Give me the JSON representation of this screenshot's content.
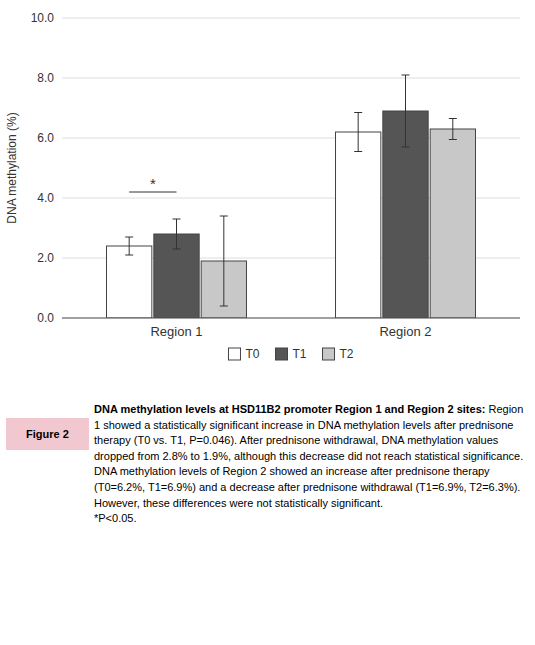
{
  "chart_data": {
    "type": "bar",
    "categories": [
      "Region 1",
      "Region 2"
    ],
    "series": [
      {
        "name": "T0",
        "color": "#ffffff",
        "values": [
          2.4,
          6.2
        ],
        "errors": [
          0.3,
          0.65
        ]
      },
      {
        "name": "T1",
        "color": "#555555",
        "values": [
          2.8,
          6.9
        ],
        "errors": [
          0.5,
          1.2
        ]
      },
      {
        "name": "T2",
        "color": "#c8c8c8",
        "values": [
          1.9,
          6.3
        ],
        "errors": [
          1.5,
          0.35
        ]
      }
    ],
    "y_label": "DNA methylation (%)",
    "ylim": [
      0.0,
      10.0
    ],
    "yticks": [
      {
        "value": 0.0,
        "label": "0.0"
      },
      {
        "value": 2.0,
        "label": "2.0"
      },
      {
        "value": 4.0,
        "label": "4.0"
      },
      {
        "value": 6.0,
        "label": "6.0"
      },
      {
        "value": 8.0,
        "label": "8.0"
      },
      {
        "value": 10.0,
        "label": "10.0"
      }
    ],
    "grid": true,
    "legend": "bottom",
    "annotations": [
      {
        "text": "*",
        "y": 4.2
      }
    ],
    "figure_label": "Figure 2",
    "figure_label_color": "#f2c8d0",
    "caption_title": "DNA methylation levels at HSD11B2 promoter Region 1 and Region 2 sites:",
    "caption": "Region 1 showed a statistically significant increase in DNA methylation levels after prednisone therapy (T0 vs. T1, P=0.046). After prednisone withdrawal, DNA methylation values dropped from 2.8% to 1.9%, although this decrease did not reach statistical significance. DNA methylation levels of Region 2 showed an increase after prednisone therapy (T0=6.2%, T1=6.9%) and a decrease after prednisone withdrawal (T1=6.9%, T2=6.3%). However, these differences were not statistically significant.",
    "caption_note": "*P<0.05."
  }
}
